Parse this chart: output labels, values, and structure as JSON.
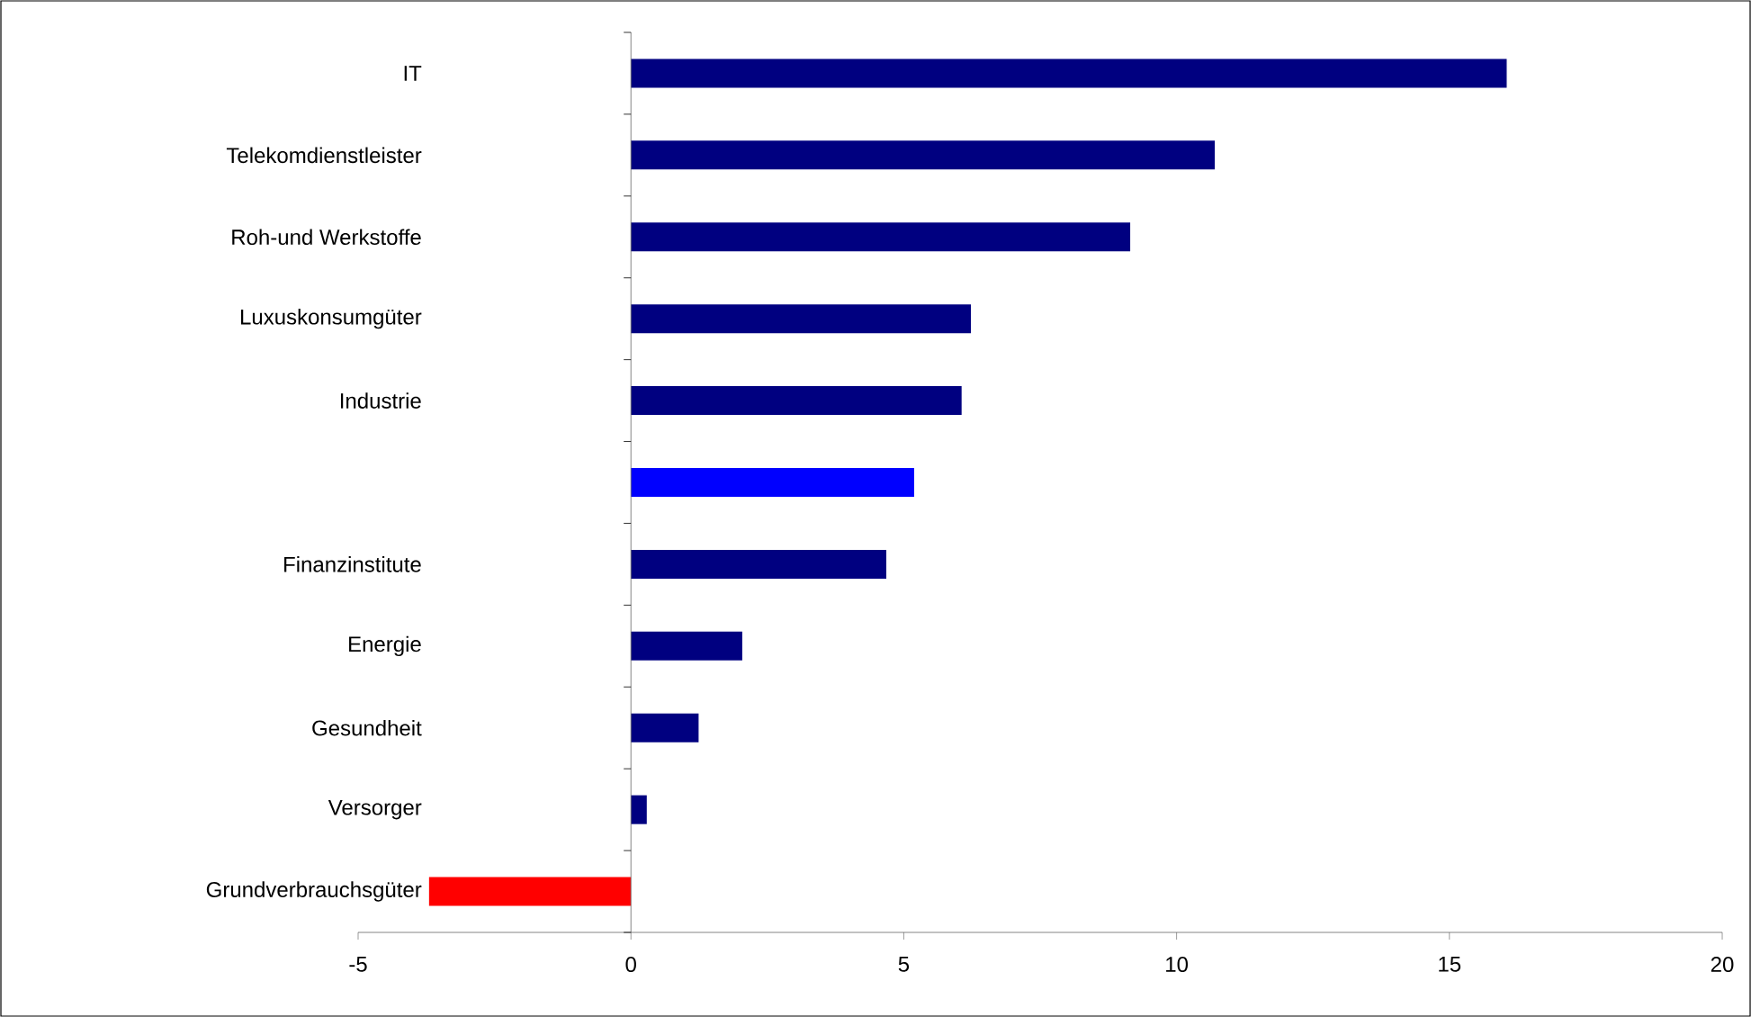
{
  "chart_data": {
    "type": "bar",
    "orientation": "horizontal",
    "categories": [
      "IT",
      "Telekomdienstleister",
      "Roh-und Werkstoffe",
      "Luxuskonsumgüter",
      "Industrie",
      null,
      "Finanzinstitute",
      "Energie",
      "Gesundheit",
      "Versorger",
      "Grundverbrauchsgüter"
    ],
    "values": [
      16.05,
      10.7,
      9.15,
      6.23,
      6.06,
      5.19,
      4.68,
      2.04,
      1.24,
      0.29,
      -3.7
    ],
    "colors": [
      "#000080",
      "#000080",
      "#000080",
      "#000080",
      "#000080",
      "#0000ff",
      "#000080",
      "#000080",
      "#000080",
      "#000080",
      "#ff0000"
    ],
    "xlim": [
      -5,
      20
    ],
    "xticks": [
      -5,
      0,
      5,
      10,
      15,
      20
    ]
  }
}
